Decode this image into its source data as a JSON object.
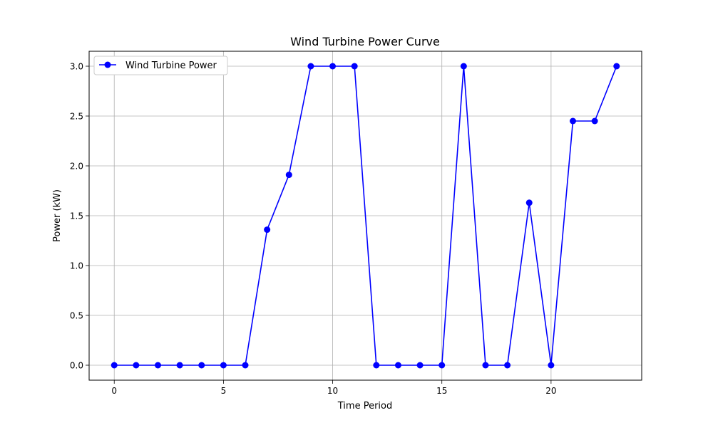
{
  "chart_data": {
    "type": "line",
    "title": "Wind Turbine Power Curve",
    "xlabel": "Time Period",
    "ylabel": "Power (kW)",
    "xlim": [
      -1.15,
      24.15
    ],
    "ylim": [
      -0.15,
      3.15
    ],
    "xticks": [
      0,
      5,
      10,
      15,
      20
    ],
    "xtick_labels": [
      "0",
      "5",
      "10",
      "15",
      "20"
    ],
    "yticks": [
      0.0,
      0.5,
      1.0,
      1.5,
      2.0,
      2.5,
      3.0
    ],
    "ytick_labels": [
      "0.0",
      "0.5",
      "1.0",
      "1.5",
      "2.0",
      "2.5",
      "3.0"
    ],
    "grid": true,
    "legend_position": "top-left",
    "series": [
      {
        "name": "Wind Turbine Power",
        "color": "#0000ff",
        "marker": "circle",
        "x": [
          0,
          1,
          2,
          3,
          4,
          5,
          6,
          7,
          8,
          9,
          10,
          11,
          12,
          13,
          14,
          15,
          16,
          17,
          18,
          19,
          20,
          21,
          22,
          23
        ],
        "y": [
          0,
          0,
          0,
          0,
          0,
          0,
          0,
          1.36,
          1.91,
          3.0,
          3.0,
          3.0,
          0,
          0,
          0,
          0,
          3.0,
          0,
          0,
          1.63,
          0,
          2.45,
          2.45,
          3.0
        ]
      }
    ]
  }
}
